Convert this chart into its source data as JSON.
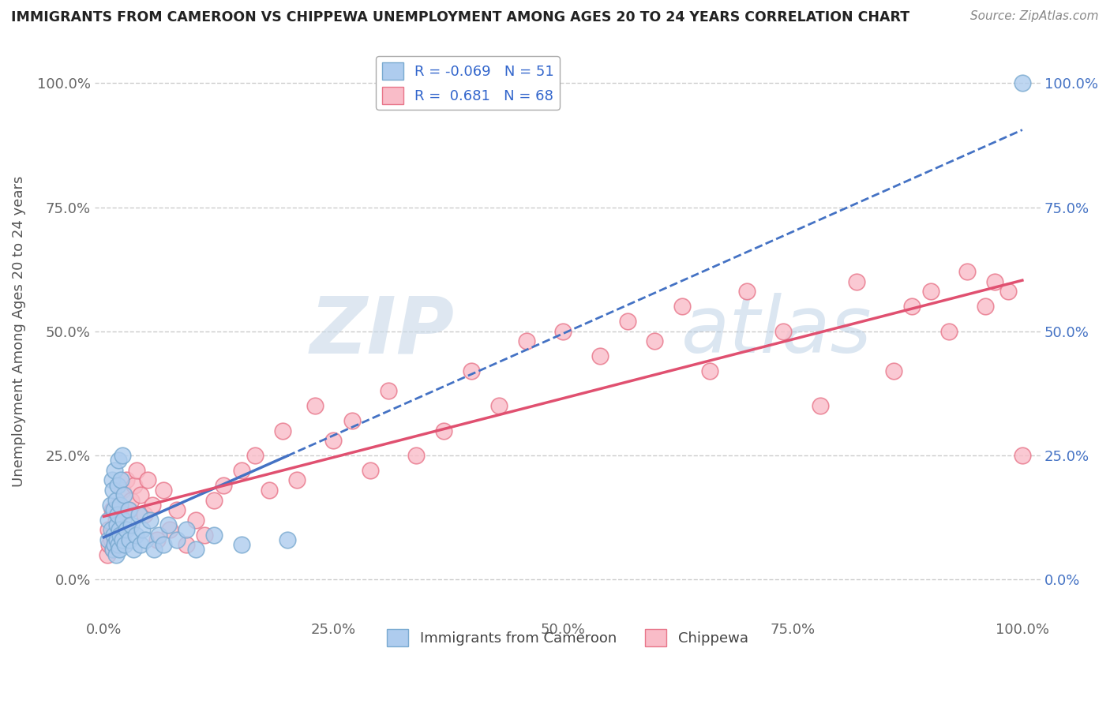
{
  "title": "IMMIGRANTS FROM CAMEROON VS CHIPPEWA UNEMPLOYMENT AMONG AGES 20 TO 24 YEARS CORRELATION CHART",
  "source": "Source: ZipAtlas.com",
  "ylabel": "Unemployment Among Ages 20 to 24 years",
  "xlabel": "",
  "xlim": [
    -0.01,
    1.02
  ],
  "ylim": [
    -0.08,
    1.08
  ],
  "x_ticks": [
    0.0,
    0.25,
    0.5,
    0.75,
    1.0
  ],
  "x_tick_labels": [
    "0.0%",
    "25.0%",
    "50.0%",
    "75.0%",
    "100.0%"
  ],
  "y_ticks": [
    0.0,
    0.25,
    0.5,
    0.75,
    1.0
  ],
  "y_tick_labels": [
    "0.0%",
    "25.0%",
    "50.0%",
    "75.0%",
    "100.0%"
  ],
  "series1_label": "Immigrants from Cameroon",
  "series1_color": "#aeccee",
  "series1_edge_color": "#7aaad0",
  "series1_R": -0.069,
  "series1_N": 51,
  "series2_label": "Chippewa",
  "series2_color": "#f9bcc8",
  "series2_edge_color": "#e8768a",
  "series2_R": 0.681,
  "series2_N": 68,
  "trend1_color": "#4472c4",
  "trend2_color": "#e05070",
  "watermark": "ZIPatlas",
  "background_color": "#ffffff",
  "series1_x": [
    0.005,
    0.005,
    0.007,
    0.008,
    0.009,
    0.01,
    0.01,
    0.011,
    0.011,
    0.012,
    0.012,
    0.013,
    0.013,
    0.014,
    0.014,
    0.015,
    0.015,
    0.016,
    0.016,
    0.017,
    0.017,
    0.018,
    0.018,
    0.019,
    0.02,
    0.02,
    0.021,
    0.022,
    0.023,
    0.025,
    0.027,
    0.028,
    0.03,
    0.032,
    0.035,
    0.038,
    0.04,
    0.042,
    0.045,
    0.05,
    0.055,
    0.06,
    0.065,
    0.07,
    0.08,
    0.09,
    0.1,
    0.12,
    0.15,
    0.2,
    1.0
  ],
  "series1_y": [
    0.08,
    0.12,
    0.15,
    0.1,
    0.2,
    0.06,
    0.18,
    0.09,
    0.14,
    0.07,
    0.22,
    0.05,
    0.16,
    0.11,
    0.08,
    0.19,
    0.13,
    0.07,
    0.24,
    0.1,
    0.06,
    0.15,
    0.09,
    0.2,
    0.08,
    0.25,
    0.12,
    0.17,
    0.07,
    0.1,
    0.14,
    0.08,
    0.11,
    0.06,
    0.09,
    0.13,
    0.07,
    0.1,
    0.08,
    0.12,
    0.06,
    0.09,
    0.07,
    0.11,
    0.08,
    0.1,
    0.06,
    0.09,
    0.07,
    0.08,
    1.0
  ],
  "series2_x": [
    0.004,
    0.005,
    0.006,
    0.008,
    0.009,
    0.01,
    0.011,
    0.012,
    0.013,
    0.014,
    0.015,
    0.016,
    0.017,
    0.018,
    0.02,
    0.022,
    0.025,
    0.028,
    0.03,
    0.033,
    0.036,
    0.04,
    0.044,
    0.048,
    0.053,
    0.058,
    0.065,
    0.072,
    0.08,
    0.09,
    0.1,
    0.11,
    0.12,
    0.13,
    0.15,
    0.165,
    0.18,
    0.195,
    0.21,
    0.23,
    0.25,
    0.27,
    0.29,
    0.31,
    0.34,
    0.37,
    0.4,
    0.43,
    0.46,
    0.5,
    0.54,
    0.57,
    0.6,
    0.63,
    0.66,
    0.7,
    0.74,
    0.78,
    0.82,
    0.86,
    0.88,
    0.9,
    0.92,
    0.94,
    0.96,
    0.97,
    0.985,
    1.0
  ],
  "series2_y": [
    0.05,
    0.1,
    0.07,
    0.08,
    0.14,
    0.06,
    0.1,
    0.08,
    0.12,
    0.07,
    0.15,
    0.09,
    0.11,
    0.13,
    0.18,
    0.1,
    0.2,
    0.14,
    0.16,
    0.19,
    0.22,
    0.17,
    0.13,
    0.2,
    0.15,
    0.08,
    0.18,
    0.1,
    0.14,
    0.07,
    0.12,
    0.09,
    0.16,
    0.19,
    0.22,
    0.25,
    0.18,
    0.3,
    0.2,
    0.35,
    0.28,
    0.32,
    0.22,
    0.38,
    0.25,
    0.3,
    0.42,
    0.35,
    0.48,
    0.5,
    0.45,
    0.52,
    0.48,
    0.55,
    0.42,
    0.58,
    0.5,
    0.35,
    0.6,
    0.42,
    0.55,
    0.58,
    0.5,
    0.62,
    0.55,
    0.6,
    0.58,
    0.25
  ]
}
